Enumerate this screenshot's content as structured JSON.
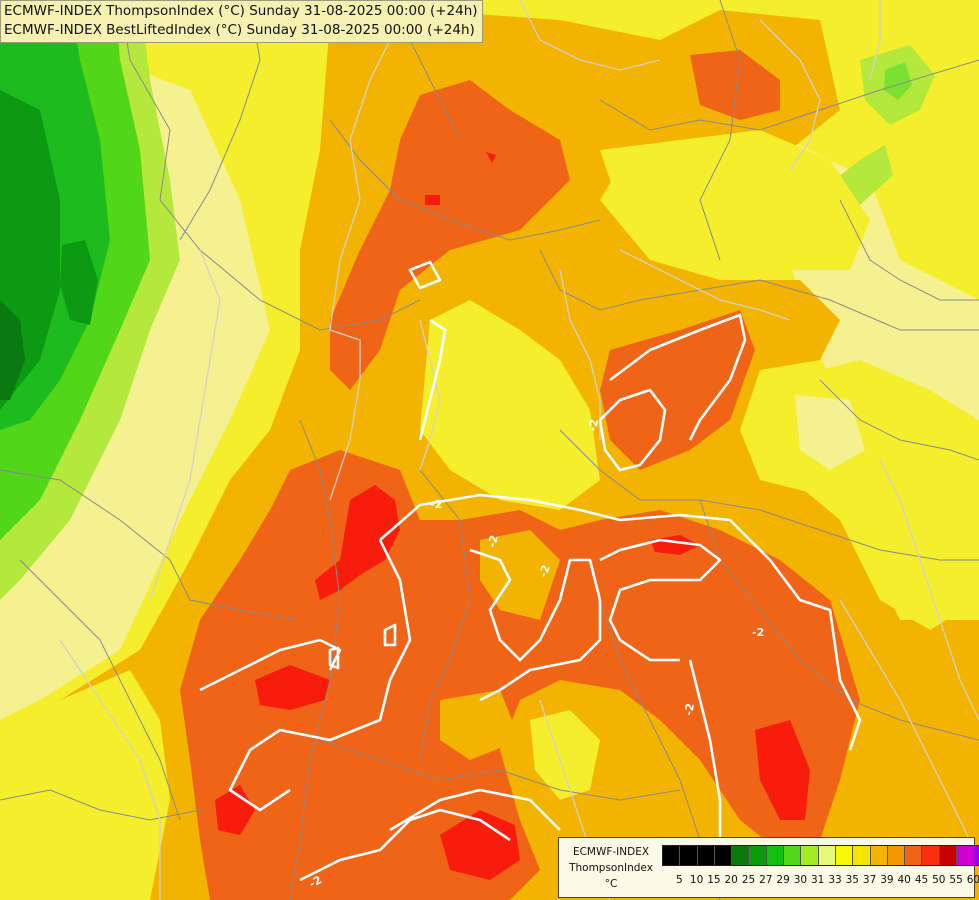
{
  "title": {
    "line1": "ECMWF-INDEX ThompsonIndex (°C) Sunday 31-08-2025 00:00 (+24h)",
    "line2": "ECMWF-INDEX BestLiftedIndex (°C) Sunday 31-08-2025 00:00 (+24h)"
  },
  "legend": {
    "line1": "ECMWF-INDEX",
    "line2": "ThompsonIndex",
    "unit": "°C",
    "colors": [
      "#000000",
      "#000000",
      "#000000",
      "#000000",
      "#0a7a0a",
      "#0b9b0b",
      "#12c012",
      "#52d816",
      "#a6ec26",
      "#e8f878",
      "#f8f800",
      "#f4e400",
      "#f4b400",
      "#f49800",
      "#f06418",
      "#f83010",
      "#c80000",
      "#d000d0",
      "#a000e0",
      "#7000e8",
      "#1010ff"
    ],
    "ticks": [
      "5",
      "10",
      "15",
      "20",
      "25",
      "27",
      "29",
      "30",
      "31",
      "33",
      "35",
      "37",
      "39",
      "40",
      "45",
      "50",
      "55",
      "60"
    ]
  },
  "isolines": {
    "value_label": "-2"
  }
}
